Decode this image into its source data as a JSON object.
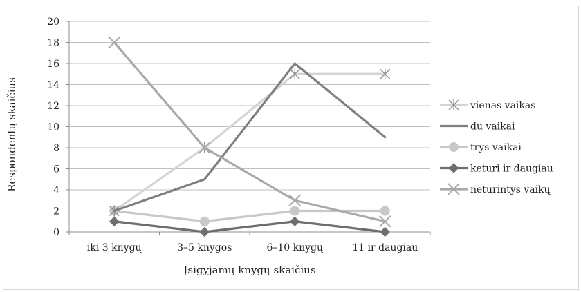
{
  "chart_data": {
    "type": "line",
    "categories": [
      "iki 3 knygų",
      "3–5 knygos",
      "6–10 knygų",
      "11 ir daugiau"
    ],
    "xlabel": "Įsigyjamų knygų skaičius",
    "ylabel": "Respondentų skaičius",
    "ylim": [
      0,
      20
    ],
    "yticks": [
      0,
      2,
      4,
      6,
      8,
      10,
      12,
      14,
      16,
      18,
      20
    ],
    "grid": true,
    "legend_position": "right",
    "series": [
      {
        "name": "vienas vaikas",
        "values": [
          2,
          8,
          15,
          15
        ],
        "color": "#d4d4d4",
        "marker": "asterisk"
      },
      {
        "name": "du vaikai",
        "values": [
          2,
          5,
          16,
          9
        ],
        "color": "#7f7f7f",
        "marker": "none"
      },
      {
        "name": "trys vaikai",
        "values": [
          2,
          1,
          2,
          2
        ],
        "color": "#c8c8c8",
        "marker": "circle"
      },
      {
        "name": "keturi ir daugiau",
        "values": [
          1,
          0,
          1,
          0
        ],
        "color": "#6e6e6e",
        "marker": "diamond"
      },
      {
        "name": "neturintys vaikų",
        "values": [
          18,
          8,
          3,
          1
        ],
        "color": "#a9a9a9",
        "marker": "x"
      }
    ]
  }
}
